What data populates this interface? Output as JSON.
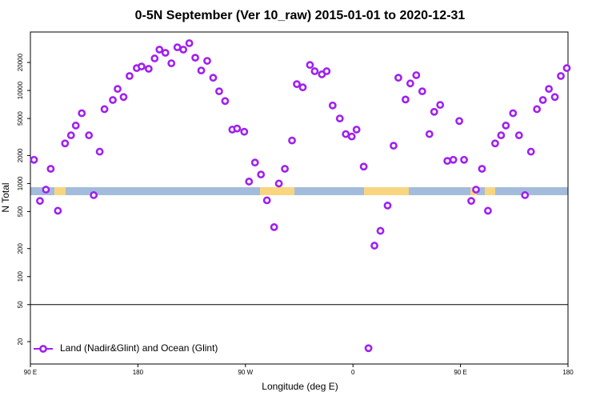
{
  "chart_data": {
    "type": "scatter",
    "title": "0-5N September (Ver 10_raw)   2015-01-01 to 2020-12-31",
    "xlabel": "Longitude (deg E)",
    "ylabel": "N Total",
    "log_y": true,
    "xlim": [
      90,
      540
    ],
    "ylim": [
      11.5,
      42500
    ],
    "xticks": [
      {
        "value": 90,
        "label": "90 E"
      },
      {
        "value": 180,
        "label": "180"
      },
      {
        "value": 270,
        "label": "90 W"
      },
      {
        "value": 360,
        "label": "0"
      },
      {
        "value": 450,
        "label": "90 E"
      },
      {
        "value": 540,
        "label": "180"
      }
    ],
    "yticks": [
      20,
      50,
      100,
      200,
      500,
      1000,
      2000,
      5000,
      10000,
      20000
    ],
    "hline": 50,
    "legend": "bottom-left",
    "series": [
      {
        "name": "Land (Nadir&Glint) and Ocean (Glint)",
        "color": "#a020f0",
        "x": [
          93,
          98,
          103,
          107,
          113,
          119,
          124,
          128,
          133,
          139,
          143,
          148,
          152,
          159,
          163,
          168,
          173,
          179,
          183,
          189,
          194,
          198,
          203,
          208,
          213,
          218,
          223,
          228,
          233,
          238,
          243,
          248,
          253,
          259,
          263,
          269,
          273,
          278,
          283,
          288,
          294,
          298,
          303,
          309,
          313,
          318,
          324,
          328,
          334,
          338,
          343,
          349,
          354,
          359,
          363,
          369,
          373,
          378,
          383,
          389,
          394,
          398,
          404,
          408,
          413,
          418,
          424,
          428,
          433,
          439,
          444,
          449,
          453,
          459,
          463,
          468,
          473,
          479,
          484,
          488,
          494,
          499,
          504,
          509,
          514,
          519,
          524,
          529,
          534,
          539
        ],
        "values": [
          1800,
          650,
          860,
          1440,
          510,
          2700,
          3300,
          4200,
          5700,
          3300,
          750,
          2200,
          6300,
          7900,
          10400,
          8500,
          14300,
          17400,
          18100,
          17100,
          22100,
          27500,
          25400,
          19600,
          29100,
          27500,
          32200,
          22500,
          16400,
          20800,
          13700,
          9800,
          7700,
          3800,
          3900,
          3600,
          1050,
          1680,
          1250,
          660,
          340,
          1000,
          1440,
          2900,
          11700,
          10800,
          18800,
          16100,
          14900,
          16100,
          6900,
          5000,
          3400,
          3200,
          3800,
          1520,
          17,
          215,
          310,
          580,
          2550,
          13700,
          8000,
          11900,
          14600,
          9800,
          3400,
          5900,
          7000,
          1750,
          1800,
          4700,
          1800,
          650,
          860,
          1440,
          510,
          2700,
          3300,
          4200,
          5700,
          3300,
          750,
          2200,
          6300,
          7900,
          10400,
          8500,
          14300,
          17400
        ]
      }
    ]
  }
}
